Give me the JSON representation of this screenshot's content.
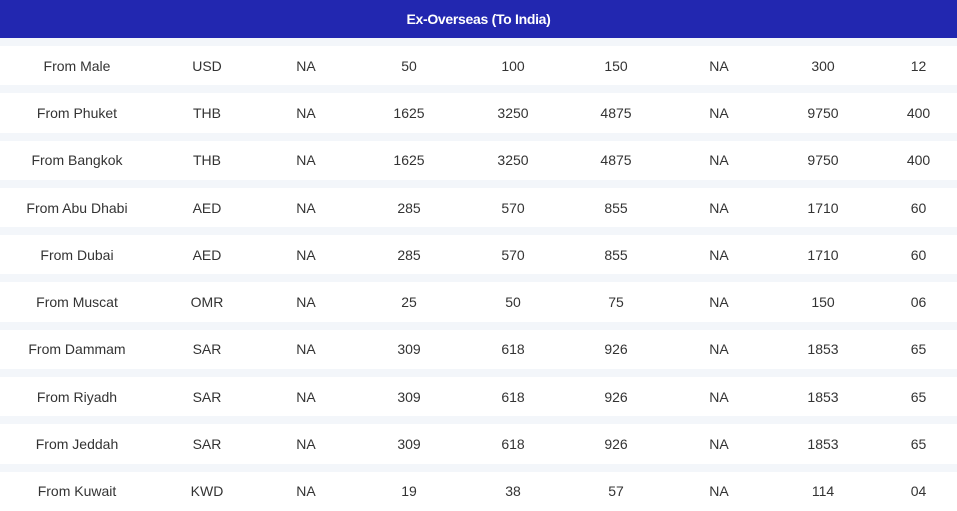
{
  "header": {
    "title": "Ex-Overseas (To India)"
  },
  "table": {
    "rows": [
      [
        "From Male",
        "USD",
        "NA",
        "50",
        "100",
        "150",
        "NA",
        "300",
        "12"
      ],
      [
        "From Phuket",
        "THB",
        "NA",
        "1625",
        "3250",
        "4875",
        "NA",
        "9750",
        "400"
      ],
      [
        "From Bangkok",
        "THB",
        "NA",
        "1625",
        "3250",
        "4875",
        "NA",
        "9750",
        "400"
      ],
      [
        "From Abu Dhabi",
        "AED",
        "NA",
        "285",
        "570",
        "855",
        "NA",
        "1710",
        "60"
      ],
      [
        "From Dubai",
        "AED",
        "NA",
        "285",
        "570",
        "855",
        "NA",
        "1710",
        "60"
      ],
      [
        "From Muscat",
        "OMR",
        "NA",
        "25",
        "50",
        "75",
        "NA",
        "150",
        "06"
      ],
      [
        "From Dammam",
        "SAR",
        "NA",
        "309",
        "618",
        "926",
        "NA",
        "1853",
        "65"
      ],
      [
        "From Riyadh",
        "SAR",
        "NA",
        "309",
        "618",
        "926",
        "NA",
        "1853",
        "65"
      ],
      [
        "From Jeddah",
        "SAR",
        "NA",
        "309",
        "618",
        "926",
        "NA",
        "1853",
        "65"
      ],
      [
        "From Kuwait",
        "KWD",
        "NA",
        "19",
        "38",
        "57",
        "NA",
        "114",
        "04"
      ]
    ]
  }
}
